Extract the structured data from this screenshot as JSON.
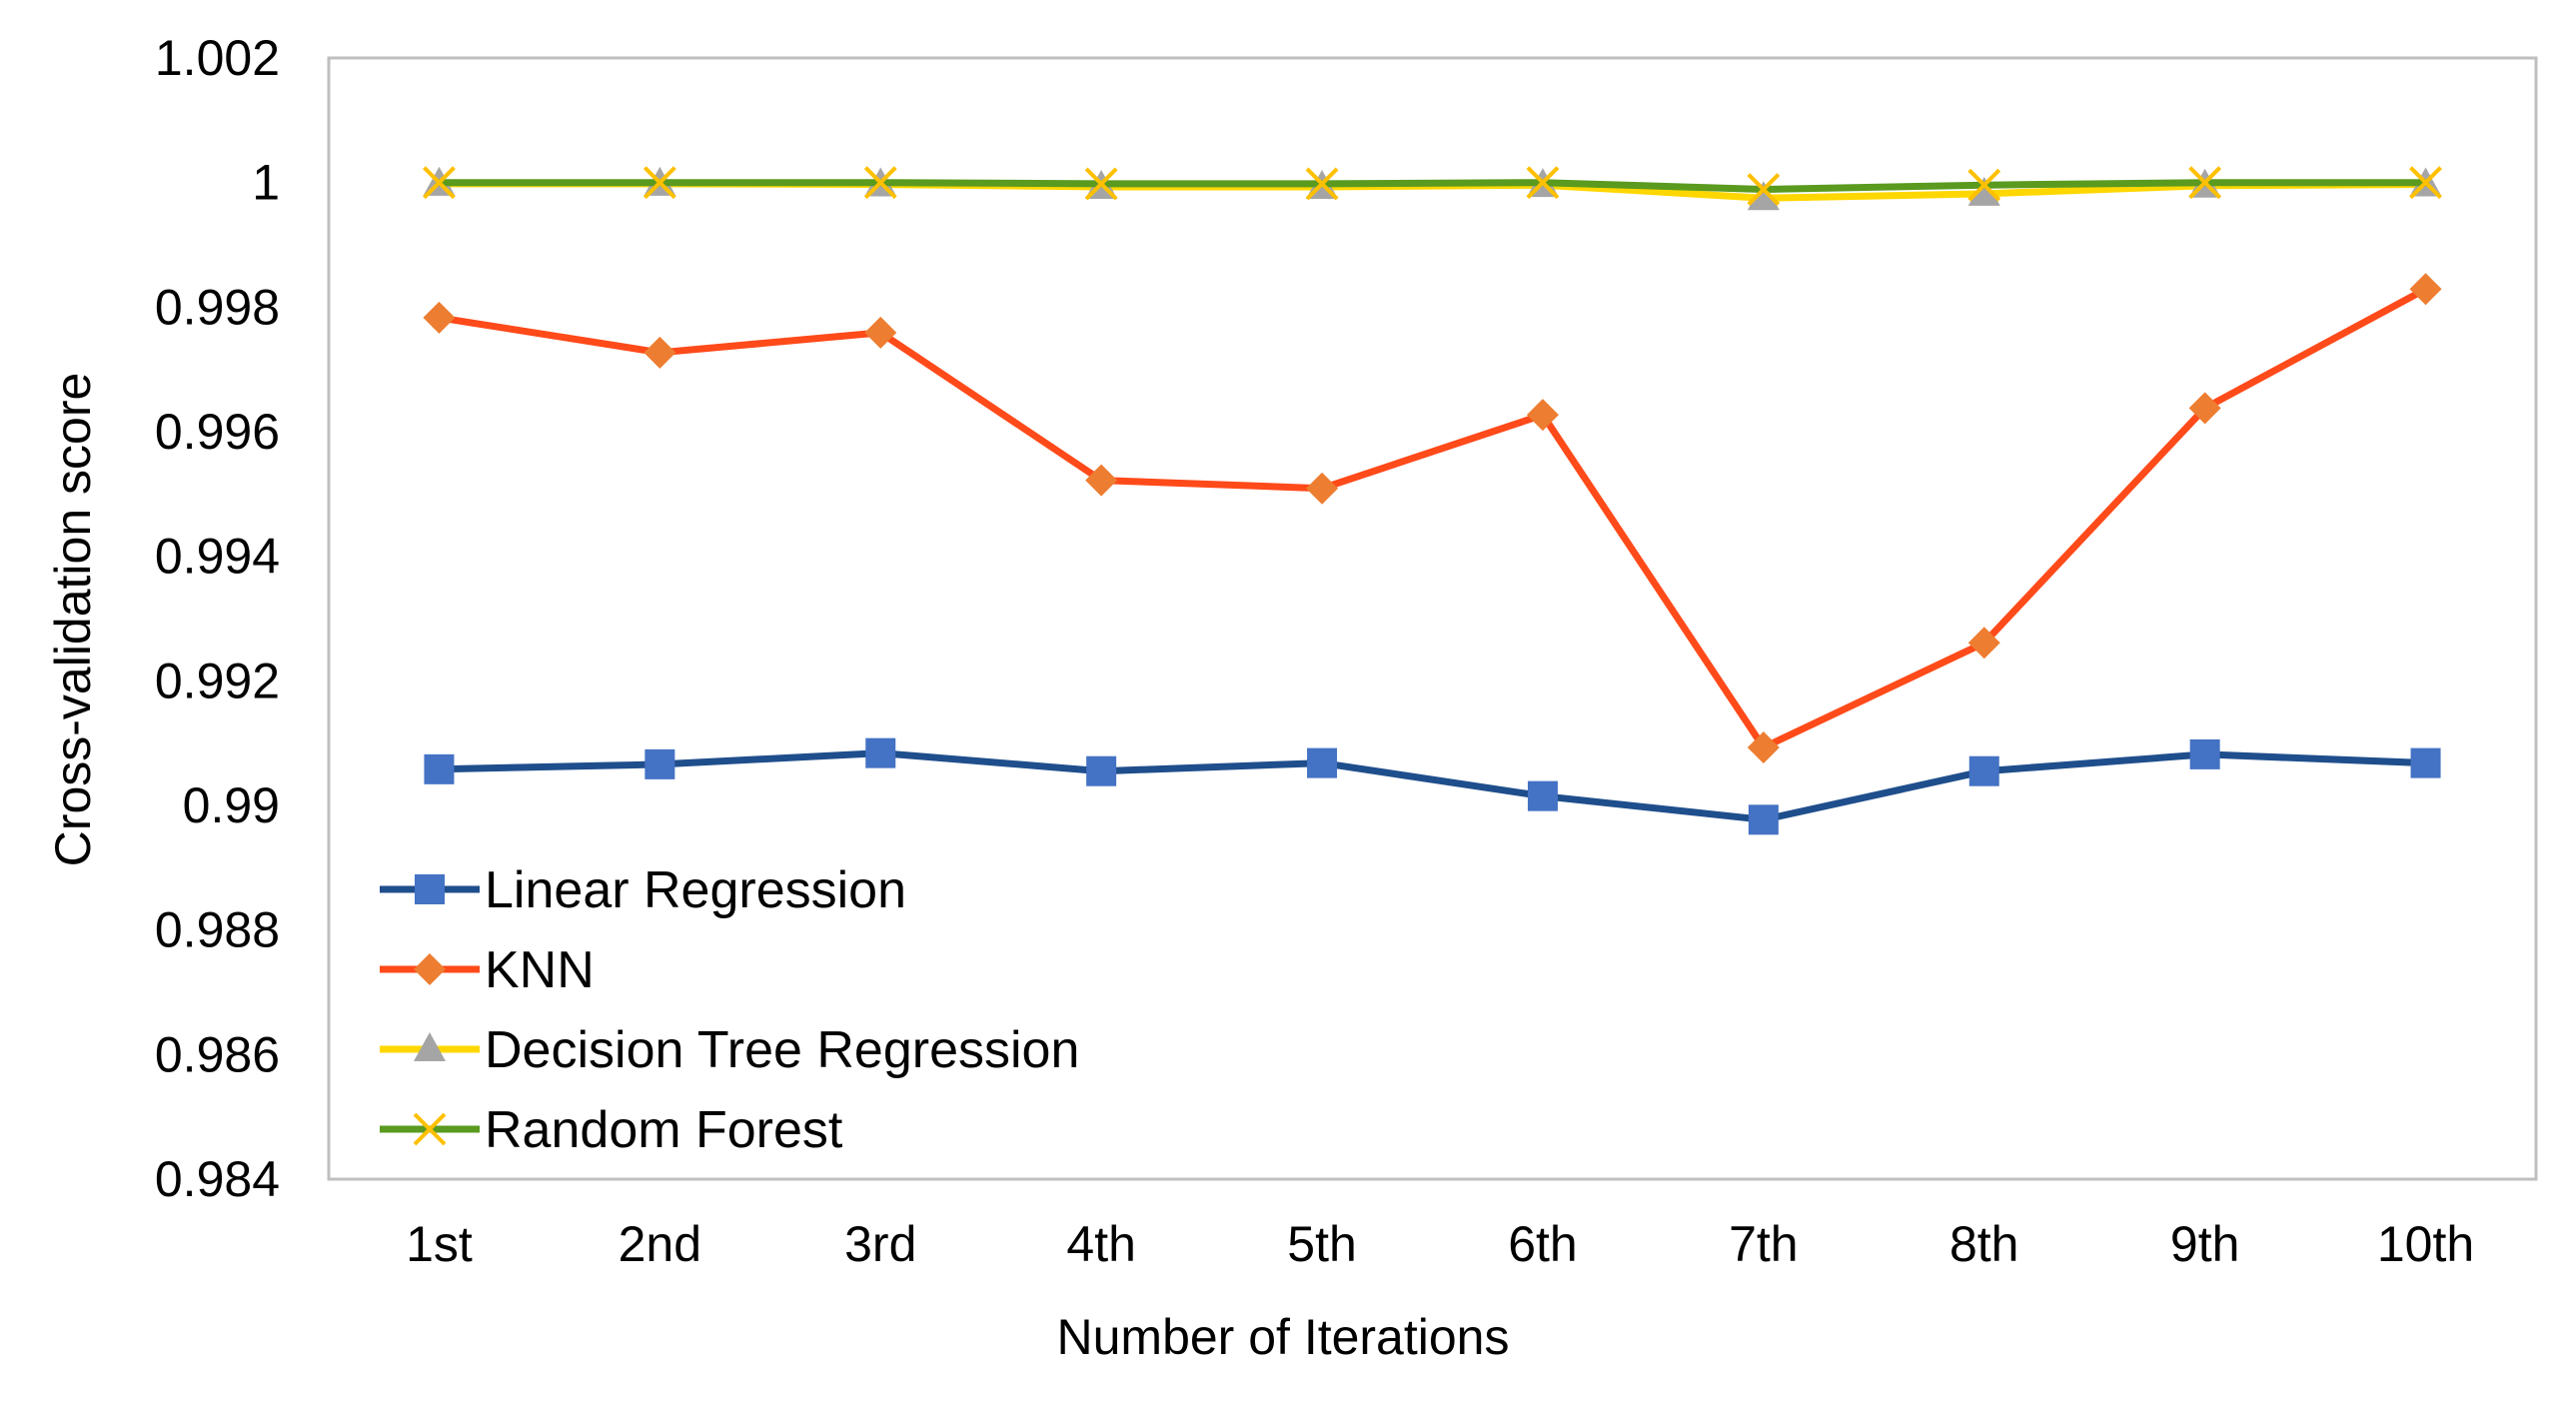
{
  "chart_data": {
    "type": "line",
    "title": "",
    "xlabel": "Number of Iterations",
    "ylabel": "Cross-validation score",
    "categories": [
      "1st",
      "2nd",
      "3rd",
      "4th",
      "5th",
      "6th",
      "7th",
      "8th",
      "9th",
      "10th"
    ],
    "ylim": [
      0.984,
      1.002
    ],
    "yticks": [
      "0.984",
      "0.986",
      "0.988",
      "0.99",
      "0.992",
      "0.994",
      "0.996",
      "0.998",
      "1",
      "1.002"
    ],
    "grid": false,
    "legend_position": "bottom-left",
    "series": [
      {
        "name": "Linear Regression",
        "line_color": "#1f4e8c",
        "marker": "square",
        "marker_color": "#4472c4",
        "values": [
          0.99058,
          0.99066,
          0.99084,
          0.99055,
          0.99068,
          0.99015,
          0.98977,
          0.99055,
          0.99082,
          0.99068
        ]
      },
      {
        "name": "KNN",
        "line_color": "#ff4a1a",
        "marker": "diamond",
        "marker_color": "#ed7d31",
        "values": [
          0.99783,
          0.99727,
          0.99759,
          0.99522,
          0.99509,
          0.99627,
          0.99093,
          0.99261,
          0.99638,
          0.99829
        ]
      },
      {
        "name": "Decision Tree Regression",
        "line_color": "#ffd700",
        "marker": "triangle",
        "marker_color": "#a5a5a5",
        "values": [
          0.99998,
          0.99998,
          0.99997,
          0.99993,
          0.99993,
          0.99996,
          0.99975,
          0.99982,
          0.99995,
          0.99997
        ]
      },
      {
        "name": "Random Forest",
        "line_color": "#5a9a1f",
        "marker": "x",
        "marker_color": "#ffc000",
        "values": [
          1.0,
          1.0,
          1.0,
          0.99998,
          0.99998,
          1.0,
          0.99989,
          0.99996,
          1.0,
          1.0
        ]
      }
    ]
  }
}
